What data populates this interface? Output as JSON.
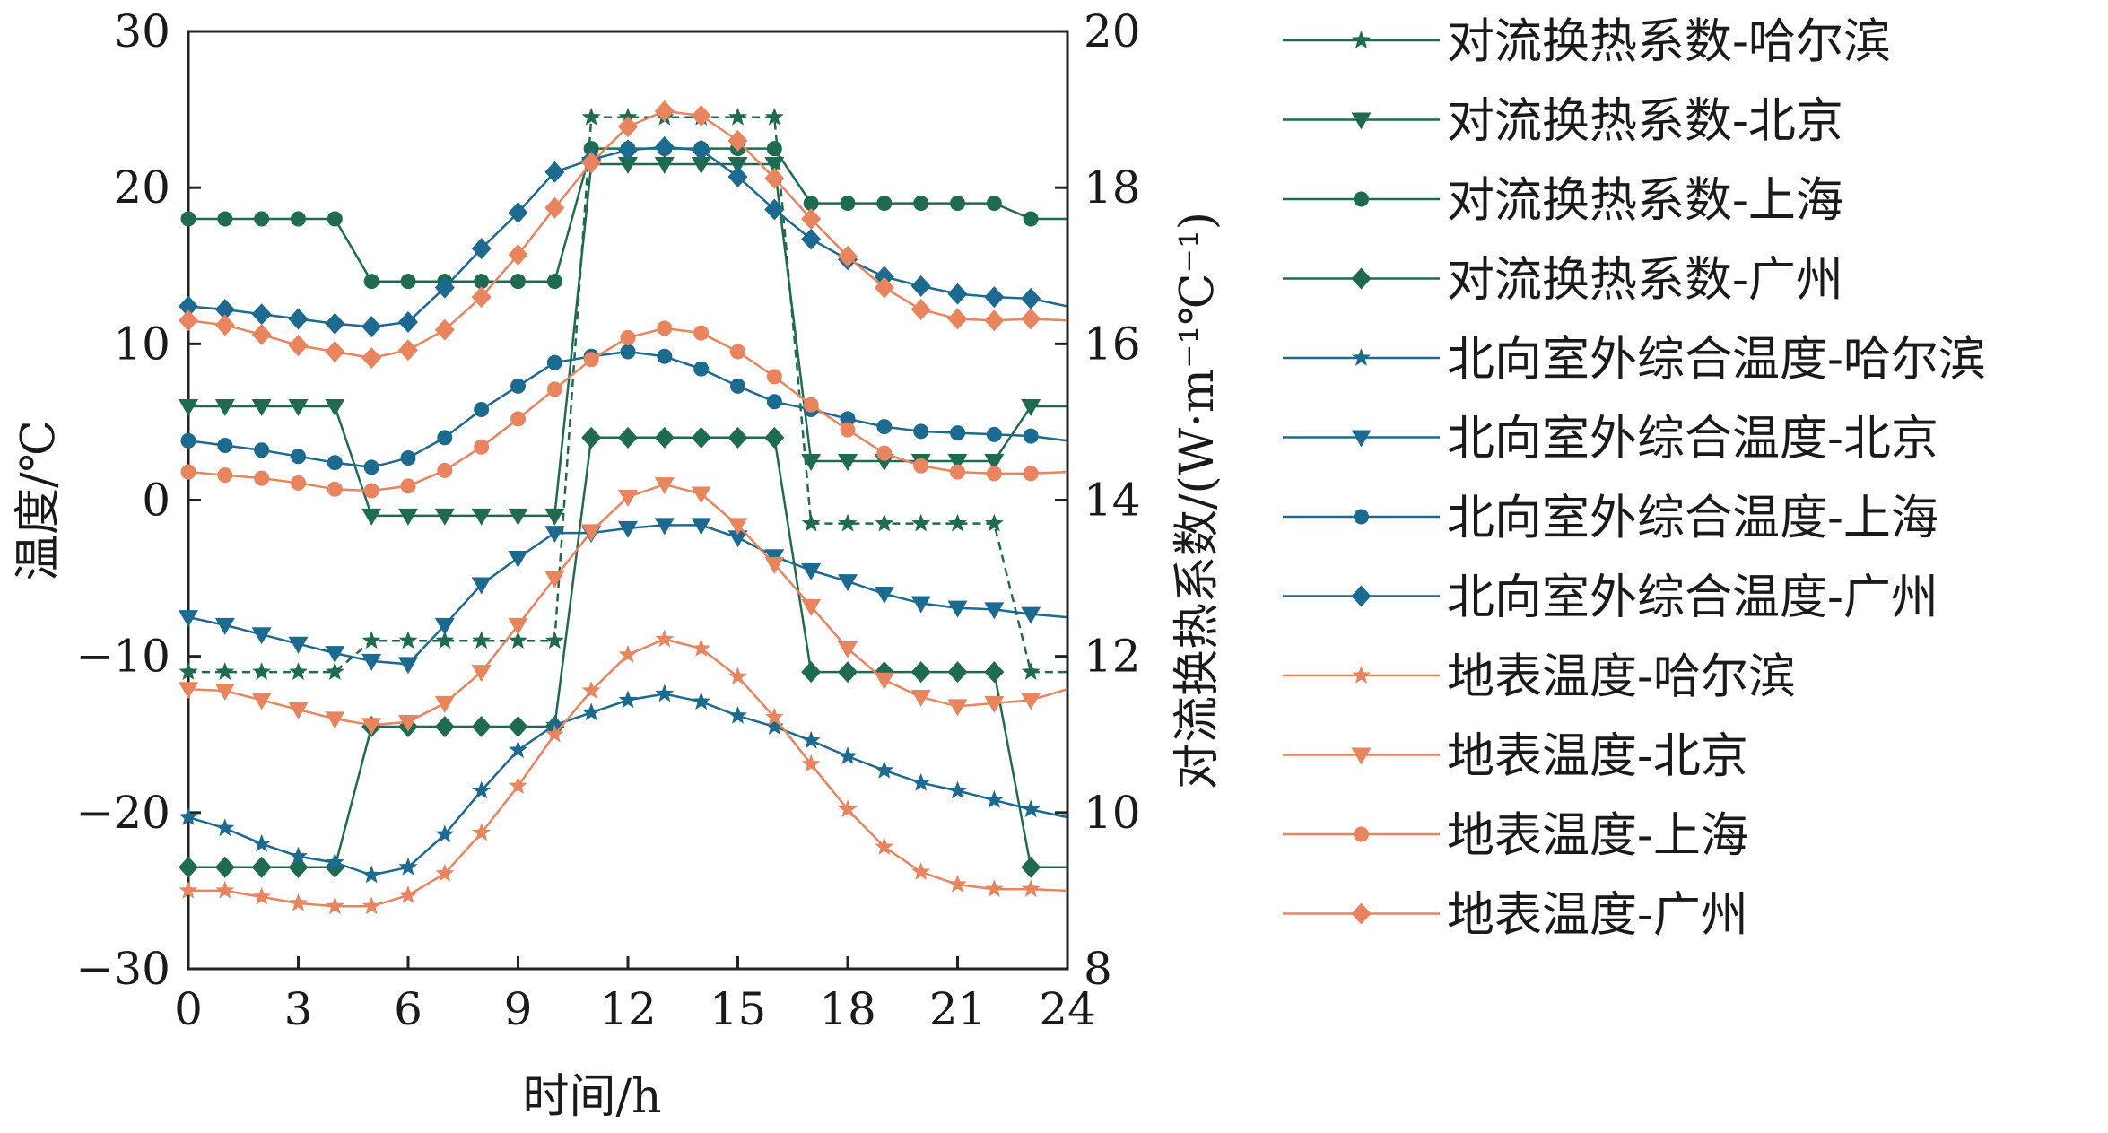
{
  "chart_data": {
    "type": "line",
    "xlabel": "时间/h",
    "ylabel_left": "温度/℃",
    "ylabel_right": "对流换热系数/(W·m⁻¹℃⁻¹)",
    "xlim": [
      0,
      24
    ],
    "ylim_left": [
      -30,
      30
    ],
    "ylim_right": [
      8,
      20
    ],
    "x_ticks": [
      "0",
      "3",
      "6",
      "9",
      "12",
      "15",
      "18",
      "21",
      "24"
    ],
    "y_ticks_left": [
      "30",
      "20",
      "10",
      "0",
      "−10",
      "−20",
      "−30"
    ],
    "y_ticks_right": [
      "20",
      "18",
      "16",
      "14",
      "12",
      "10",
      "8"
    ],
    "grid": false,
    "legend_position": "right",
    "x": [
      0,
      1,
      2,
      3,
      4,
      5,
      6,
      7,
      8,
      9,
      10,
      11,
      12,
      13,
      14,
      15,
      16,
      17,
      18,
      19,
      20,
      21,
      22,
      23
    ],
    "series": [
      {
        "name": "对流换热系数-哈尔滨",
        "axis": "right",
        "marker": "star",
        "color": "#1e6b52",
        "dash": true,
        "values": [
          11.8,
          11.8,
          11.8,
          11.8,
          11.8,
          12.2,
          12.2,
          12.2,
          12.2,
          12.2,
          12.2,
          18.9,
          18.9,
          18.9,
          18.9,
          18.9,
          18.9,
          13.7,
          13.7,
          13.7,
          13.7,
          13.7,
          13.7,
          11.8
        ]
      },
      {
        "name": "对流换热系数-北京",
        "axis": "right",
        "marker": "tri-down",
        "color": "#1e6b52",
        "values": [
          15.2,
          15.2,
          15.2,
          15.2,
          15.2,
          13.8,
          13.8,
          13.8,
          13.8,
          13.8,
          13.8,
          18.3,
          18.3,
          18.3,
          18.3,
          18.3,
          18.3,
          14.5,
          14.5,
          14.5,
          14.5,
          14.5,
          14.5,
          15.2
        ]
      },
      {
        "name": "对流换热系数-上海",
        "axis": "right",
        "marker": "circle",
        "color": "#1e6b52",
        "values": [
          17.6,
          17.6,
          17.6,
          17.6,
          17.6,
          16.8,
          16.8,
          16.8,
          16.8,
          16.8,
          16.8,
          18.5,
          18.5,
          18.5,
          18.5,
          18.5,
          18.5,
          17.8,
          17.8,
          17.8,
          17.8,
          17.8,
          17.8,
          17.6
        ]
      },
      {
        "name": "对流换热系数-广州",
        "axis": "right",
        "marker": "diamond",
        "color": "#1e6b52",
        "values": [
          9.3,
          9.3,
          9.3,
          9.3,
          9.3,
          11.1,
          11.1,
          11.1,
          11.1,
          11.1,
          11.1,
          14.8,
          14.8,
          14.8,
          14.8,
          14.8,
          14.8,
          11.8,
          11.8,
          11.8,
          11.8,
          11.8,
          11.8,
          9.3
        ]
      },
      {
        "name": "北向室外综合温度-哈尔滨",
        "axis": "left",
        "marker": "star",
        "color": "#1c6a8f",
        "values": [
          -20.3,
          -21,
          -22,
          -22.8,
          -23.2,
          -24,
          -23.5,
          -21.4,
          -18.6,
          -16,
          -14.4,
          -13.6,
          -12.8,
          -12.4,
          -12.9,
          -13.8,
          -14.5,
          -15.4,
          -16.4,
          -17.3,
          -18.1,
          -18.6,
          -19.2,
          -19.8
        ]
      },
      {
        "name": "北向室外综合温度-北京",
        "axis": "left",
        "marker": "tri-down",
        "color": "#1c6a8f",
        "values": [
          -7.5,
          -8,
          -8.6,
          -9.2,
          -9.8,
          -10.3,
          -10.5,
          -8,
          -5.4,
          -3.7,
          -2.1,
          -2.1,
          -1.8,
          -1.6,
          -1.6,
          -2.4,
          -3.6,
          -4.5,
          -5.2,
          -6,
          -6.6,
          -6.9,
          -7,
          -7.3
        ]
      },
      {
        "name": "北向室外综合温度-上海",
        "axis": "left",
        "marker": "circle",
        "color": "#1c6a8f",
        "values": [
          3.8,
          3.5,
          3.2,
          2.8,
          2.4,
          2.1,
          2.7,
          4,
          5.8,
          7.3,
          8.8,
          9.2,
          9.5,
          9.2,
          8.4,
          7.3,
          6.3,
          5.8,
          5.2,
          4.7,
          4.4,
          4.3,
          4.2,
          4.1
        ]
      },
      {
        "name": "北向室外综合温度-广州",
        "axis": "left",
        "marker": "diamond",
        "color": "#1c6a8f",
        "values": [
          12.4,
          12.2,
          11.9,
          11.6,
          11.3,
          11.1,
          11.4,
          13.6,
          16.1,
          18.4,
          21,
          21.8,
          22.4,
          22.6,
          22.4,
          20.7,
          18.6,
          16.7,
          15.4,
          14.3,
          13.7,
          13.2,
          13,
          12.9
        ]
      },
      {
        "name": "地表温度-哈尔滨",
        "axis": "left",
        "marker": "star",
        "color": "#e8845e",
        "values": [
          -25,
          -25,
          -25.4,
          -25.8,
          -26,
          -26,
          -25.3,
          -23.9,
          -21.3,
          -18.3,
          -15,
          -12.2,
          -9.9,
          -8.9,
          -9.5,
          -11.3,
          -13.9,
          -16.9,
          -19.8,
          -22.2,
          -23.8,
          -24.6,
          -24.9,
          -24.9
        ]
      },
      {
        "name": "地表温度-北京",
        "axis": "left",
        "marker": "tri-down",
        "color": "#e8845e",
        "values": [
          -12.1,
          -12.2,
          -12.8,
          -13.4,
          -14,
          -14.4,
          -14.2,
          -13,
          -11,
          -8,
          -5,
          -2,
          0.2,
          1,
          0.4,
          -1.6,
          -4.1,
          -6.8,
          -9.5,
          -11.5,
          -12.6,
          -13.2,
          -13,
          -12.8
        ]
      },
      {
        "name": "地表温度-上海",
        "axis": "left",
        "marker": "circle",
        "color": "#e8845e",
        "values": [
          1.8,
          1.6,
          1.4,
          1.1,
          0.7,
          0.6,
          0.9,
          1.9,
          3.4,
          5.2,
          7.1,
          9,
          10.4,
          11,
          10.7,
          9.5,
          7.9,
          6.1,
          4.5,
          3,
          2.2,
          1.8,
          1.7,
          1.7
        ]
      },
      {
        "name": "地表温度-广州",
        "axis": "left",
        "marker": "diamond",
        "color": "#e8845e",
        "values": [
          11.5,
          11.2,
          10.6,
          9.9,
          9.5,
          9.1,
          9.6,
          10.9,
          13,
          15.7,
          18.7,
          21.6,
          23.9,
          24.9,
          24.6,
          23,
          20.6,
          18,
          15.6,
          13.6,
          12.2,
          11.6,
          11.5,
          11.6
        ]
      }
    ]
  }
}
